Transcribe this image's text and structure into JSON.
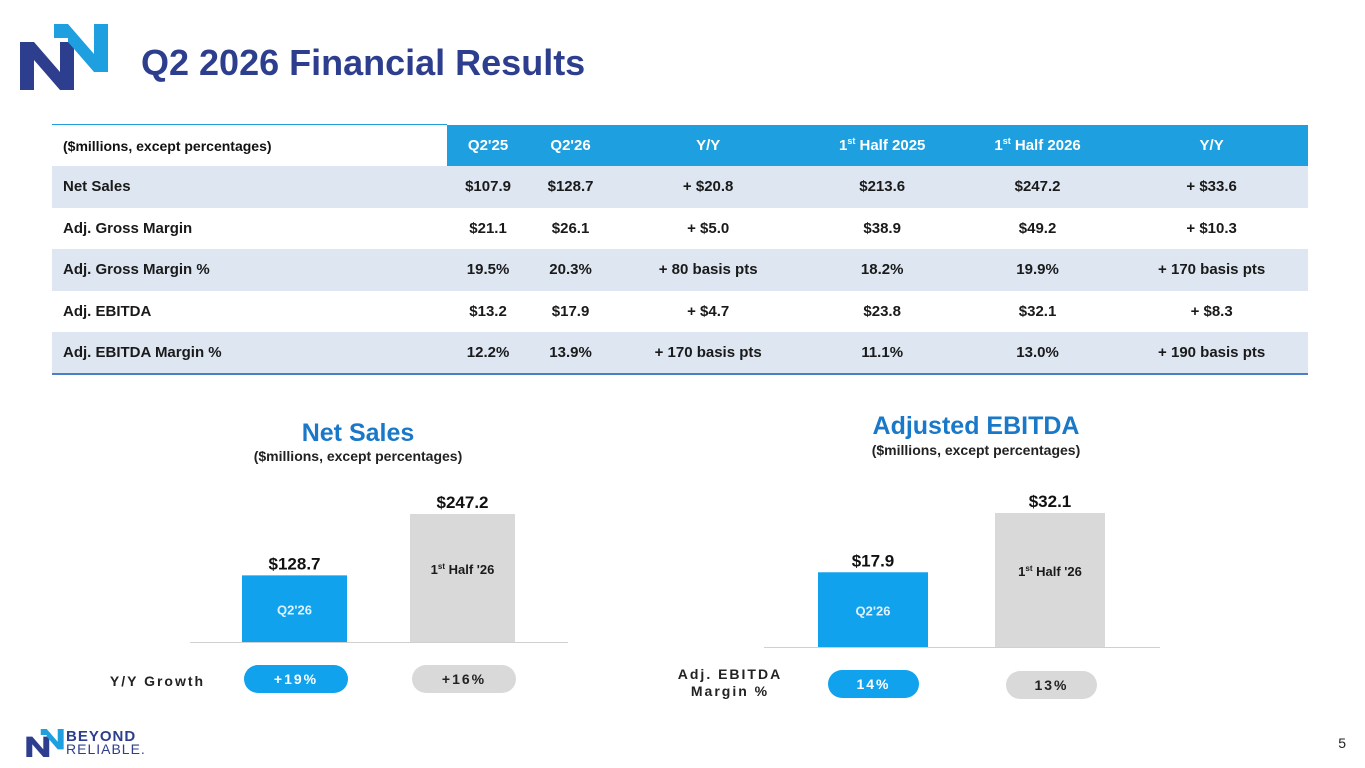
{
  "header": {
    "title": "Q2 2026 Financial Results"
  },
  "colors": {
    "brand_navy": "#2e3e8e",
    "brand_blue": "#1ea0e0",
    "bar_blue": "#10a2ec",
    "bar_gray": "#d9d9d9",
    "row_shade": "#dde6f1"
  },
  "table": {
    "headers": [
      {
        "text": "($millions, except percentages)"
      },
      {
        "text": "Q2'25"
      },
      {
        "text": "Q2'26"
      },
      {
        "text": "Y/Y"
      },
      {
        "pre": "1",
        "sup": "st",
        "post": " Half 2025"
      },
      {
        "pre": "1",
        "sup": "st",
        "post": " Half 2026"
      },
      {
        "text": "Y/Y"
      }
    ],
    "rows": [
      [
        "Net Sales",
        "$107.9",
        "$128.7",
        "+ $20.8",
        "$213.6",
        "$247.2",
        "+ $33.6"
      ],
      [
        "Adj. Gross Margin",
        "$21.1",
        "$26.1",
        "+ $5.0",
        "$38.9",
        "$49.2",
        "+ $10.3"
      ],
      [
        "Adj. Gross Margin %",
        "19.5%",
        "20.3%",
        "+ 80 basis pts",
        "18.2%",
        "19.9%",
        "+ 170 basis pts"
      ],
      [
        "Adj. EBITDA",
        "$13.2",
        "$17.9",
        "+ $4.7",
        "$23.8",
        "$32.1",
        "+ $8.3"
      ],
      [
        "Adj. EBITDA Margin %",
        "12.2%",
        "13.9%",
        "+ 170 basis pts",
        "11.1%",
        "13.0%",
        "+ 190 basis pts"
      ]
    ]
  },
  "net_sales": {
    "title": "Net Sales",
    "subtitle": "($millions, except percentages)",
    "row_label": "Y/Y Growth",
    "pills": [
      "+19%",
      "+16%"
    ]
  },
  "ebitda": {
    "title": "Adjusted EBITDA",
    "subtitle": "($millions, except percentages)",
    "row_label_1": "Adj. EBITDA",
    "row_label_2": "Margin %",
    "pills": [
      "14%",
      "13%"
    ]
  },
  "chart_data": [
    {
      "type": "bar",
      "title": "Net Sales",
      "subtitle": "($millions, except percentages)",
      "categories": [
        "Q2'26",
        "1st Half '26"
      ],
      "values": [
        128.7,
        247.2
      ],
      "value_labels": [
        "$128.7",
        "$247.2"
      ],
      "bar_colors": [
        "#10a2ec",
        "#d9d9d9"
      ],
      "ylim": [
        0,
        247.2
      ]
    },
    {
      "type": "bar",
      "title": "Adjusted EBITDA",
      "subtitle": "($millions, except percentages)",
      "categories": [
        "Q2'26",
        "1st Half '26"
      ],
      "values": [
        17.9,
        32.1
      ],
      "value_labels": [
        "$17.9",
        "$32.1"
      ],
      "bar_colors": [
        "#10a2ec",
        "#d9d9d9"
      ],
      "ylim": [
        0,
        32.1
      ]
    }
  ],
  "footer": {
    "brand_line1": "BEYOND",
    "brand_line2": "RELIABLE.",
    "page_number": "5"
  }
}
